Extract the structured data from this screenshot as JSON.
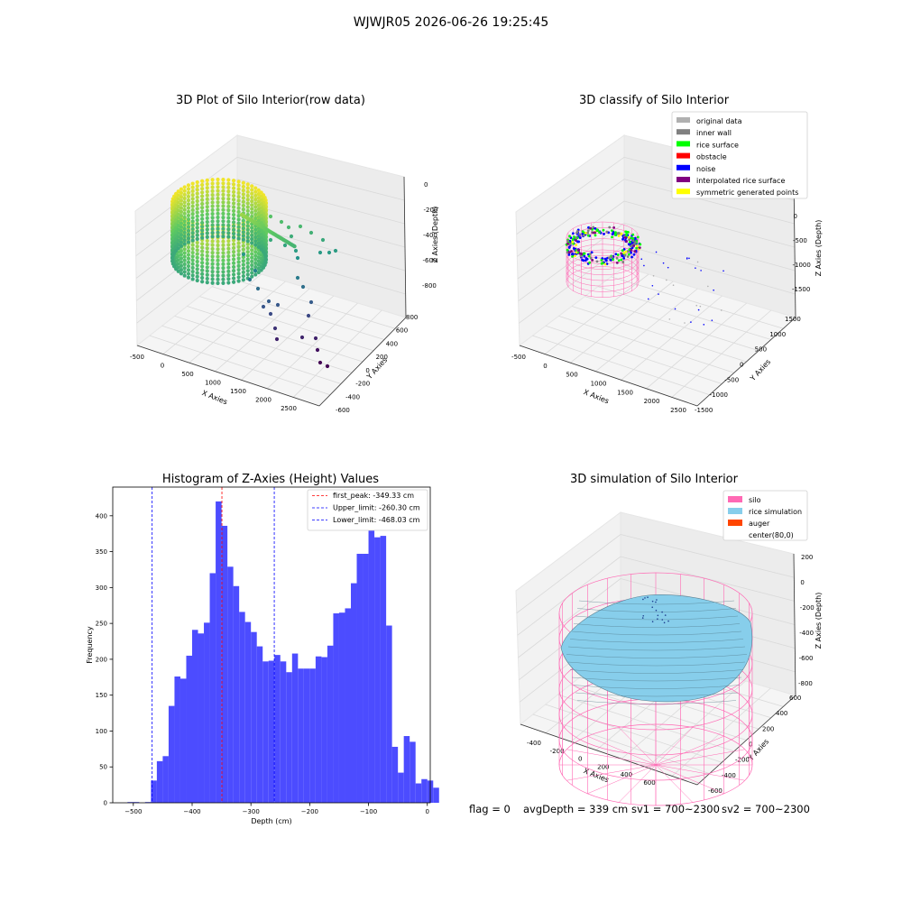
{
  "suptitle": "WJWJR05 2026-06-26 19:25:45",
  "status": {
    "flag": "flag = 0",
    "avg": "avgDepth = 339 cm",
    "sv1": "sv1 = 700~2300",
    "sv2": "sv2 = 700~2300"
  },
  "chart_data": [
    {
      "type": "scatter",
      "projection": "3d",
      "title": "3D Plot of Silo Interior(row data)",
      "xlabel": "X Axies",
      "ylabel": "Y Axies",
      "zlabel": "Z Axies (Depth)",
      "xticks": [
        "-500",
        "0",
        "500",
        "1000",
        "1500",
        "2000",
        "2500"
      ],
      "yticks": [
        "-600",
        "-400",
        "-200",
        "0",
        "200",
        "400",
        "600",
        "800"
      ],
      "zticks": [
        "0",
        "-200",
        "-400",
        "-600",
        "-800"
      ],
      "colormap": "viridis",
      "dense_ring": {
        "x_range": [
          -450,
          450
        ],
        "y_range": [
          -450,
          450
        ],
        "z_range": [
          -500,
          -200
        ]
      },
      "sparse_points": [
        {
          "x": 900,
          "y": 500,
          "z": -350
        },
        {
          "x": 1200,
          "y": 600,
          "z": -380
        },
        {
          "x": 1500,
          "y": 650,
          "z": -420
        },
        {
          "x": 1300,
          "y": 300,
          "z": -500
        },
        {
          "x": 1100,
          "y": 0,
          "z": -560
        },
        {
          "x": 1500,
          "y": -100,
          "z": -620
        },
        {
          "x": 1700,
          "y": 100,
          "z": -650
        },
        {
          "x": 1900,
          "y": -100,
          "z": -700
        },
        {
          "x": 2100,
          "y": -200,
          "z": -760
        },
        {
          "x": 2300,
          "y": -300,
          "z": -800
        },
        {
          "x": 2500,
          "y": -400,
          "z": -850
        },
        {
          "x": 1800,
          "y": 350,
          "z": -600
        },
        {
          "x": 1000,
          "y": 200,
          "z": -450
        },
        {
          "x": 700,
          "y": 100,
          "z": -400
        }
      ]
    },
    {
      "type": "scatter",
      "projection": "3d",
      "title": "3D classify of Silo Interior",
      "xlabel": "X Axies",
      "ylabel": "Y Axies",
      "zlabel": "Z Axies (Depth)",
      "xticks": [
        "-500",
        "0",
        "500",
        "1000",
        "1500",
        "2000",
        "2500"
      ],
      "yticks": [
        "-1500",
        "-1000",
        "-500",
        "0",
        "500",
        "1000",
        "1500"
      ],
      "zticks": [
        "500",
        "0",
        "-500",
        "-1000",
        "-1500"
      ],
      "legend": [
        {
          "label": "original data",
          "color": "#b0b0b0"
        },
        {
          "label": "inner wall",
          "color": "#808080"
        },
        {
          "label": "rice surface",
          "color": "#00ff00"
        },
        {
          "label": "obstacle",
          "color": "#ff0000"
        },
        {
          "label": "noise",
          "color": "#0000ff"
        },
        {
          "label": "interpolated rice surface",
          "color": "#800080"
        },
        {
          "label": "symmetric generated points",
          "color": "#ffff00"
        }
      ],
      "legend_loc": "upper right",
      "cylinder_color": "#ff69b4"
    },
    {
      "type": "bar",
      "title": "Histogram of Z-Axies (Height) Values",
      "xlabel": "Depth (cm)",
      "ylabel": "Frequency",
      "xlim": [
        -535,
        5
      ],
      "ylim": [
        0,
        440
      ],
      "xticks": [
        -500,
        -400,
        -300,
        -200,
        -100,
        0
      ],
      "yticks": [
        0,
        50,
        100,
        150,
        200,
        250,
        300,
        350,
        400
      ],
      "bar_color": "#4c4cff",
      "bin_start": -510,
      "bin_width": 10.0,
      "values": [
        1,
        1,
        0,
        1,
        31,
        58,
        65,
        135,
        176,
        173,
        205,
        241,
        236,
        251,
        320,
        420,
        386,
        329,
        302,
        266,
        252,
        238,
        218,
        197,
        198,
        206,
        197,
        182,
        208,
        187,
        187,
        187,
        204,
        203,
        219,
        264,
        265,
        271,
        306,
        347,
        347,
        393,
        370,
        372,
        247,
        78,
        42,
        93,
        85,
        27,
        33,
        31,
        21
      ],
      "vlines": [
        {
          "label": "first_peak: -349.33 cm",
          "x": -349.33,
          "color": "#ff0000"
        },
        {
          "label": "Upper_limit: -260.30 cm",
          "x": -260.3,
          "color": "#0000ff"
        },
        {
          "label": "Lower_limit: -468.03 cm",
          "x": -468.03,
          "color": "#0000ff"
        }
      ]
    },
    {
      "type": "surface",
      "projection": "3d",
      "title": "3D simulation of Silo Interior",
      "xlabel": "X Axies",
      "ylabel": "Y Axies",
      "zlabel": "Z Axies (Depth)",
      "xticks": [
        "-400",
        "-200",
        "0",
        "200",
        "400",
        "600"
      ],
      "yticks": [
        "-600",
        "-400",
        "-200",
        "0",
        "200",
        "400",
        "600"
      ],
      "zticks": [
        "200",
        "0",
        "-200",
        "-400",
        "-600",
        "-800"
      ],
      "legend": [
        {
          "label": "silo",
          "color": "#ff69b4"
        },
        {
          "label": "rice simulation",
          "color": "#87ceeb"
        },
        {
          "label": "auger",
          "color": "#ff4500"
        },
        {
          "label": "center(80,0)",
          "color": ""
        }
      ],
      "legend_loc": "upper right"
    }
  ]
}
